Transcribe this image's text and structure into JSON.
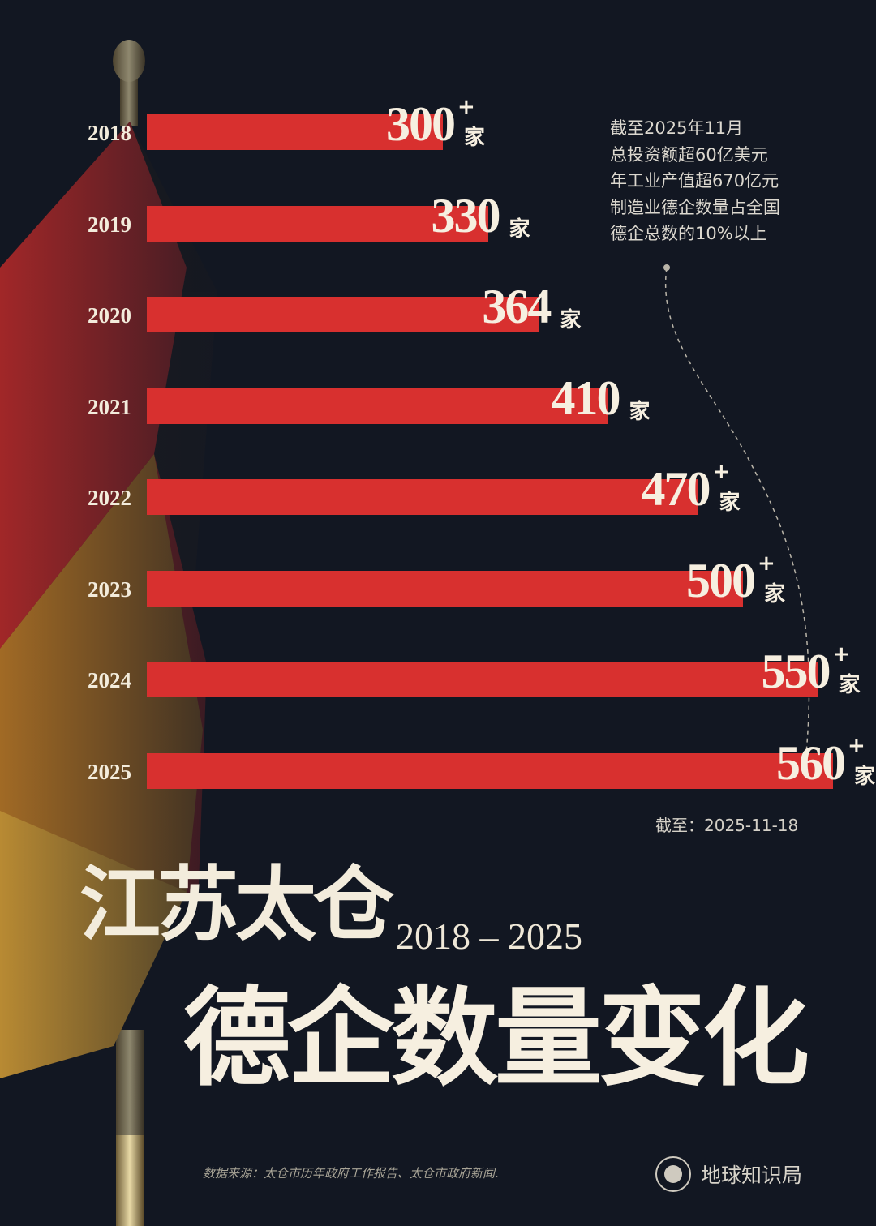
{
  "chart_data": {
    "type": "bar",
    "orientation": "horizontal",
    "categories": [
      "2018",
      "2019",
      "2020",
      "2021",
      "2022",
      "2023",
      "2024",
      "2025"
    ],
    "values": [
      300,
      330,
      364,
      410,
      470,
      500,
      550,
      560
    ],
    "value_labels": [
      "300",
      "330",
      "364",
      "410",
      "470",
      "500",
      "550",
      "560"
    ],
    "plus_marks": [
      true,
      false,
      false,
      false,
      true,
      true,
      true,
      true
    ],
    "unit": "家",
    "plus_symbol": "+",
    "title": "江苏太仓",
    "year_range": "2018 – 2025",
    "subtitle": "德企数量变化",
    "grid": false,
    "colors": {
      "bar": "#d8302f",
      "background": "#121722",
      "text": "#f3ecdc"
    }
  },
  "annotation": {
    "lines": [
      "截至2025年11月",
      "总投资额超60亿美元",
      "年工业产值超670亿元",
      "制造业德企数量占全国",
      "德企总数的10%以上"
    ]
  },
  "as_of": "截至：2025-11-18",
  "source": "数据来源：太仓市历年政府工作报告、太仓市政府新闻.",
  "brand": {
    "name": "地球知识局",
    "logo_icon": "globe-seal-icon"
  },
  "decoration": {
    "flag": "german-flag-icon"
  }
}
